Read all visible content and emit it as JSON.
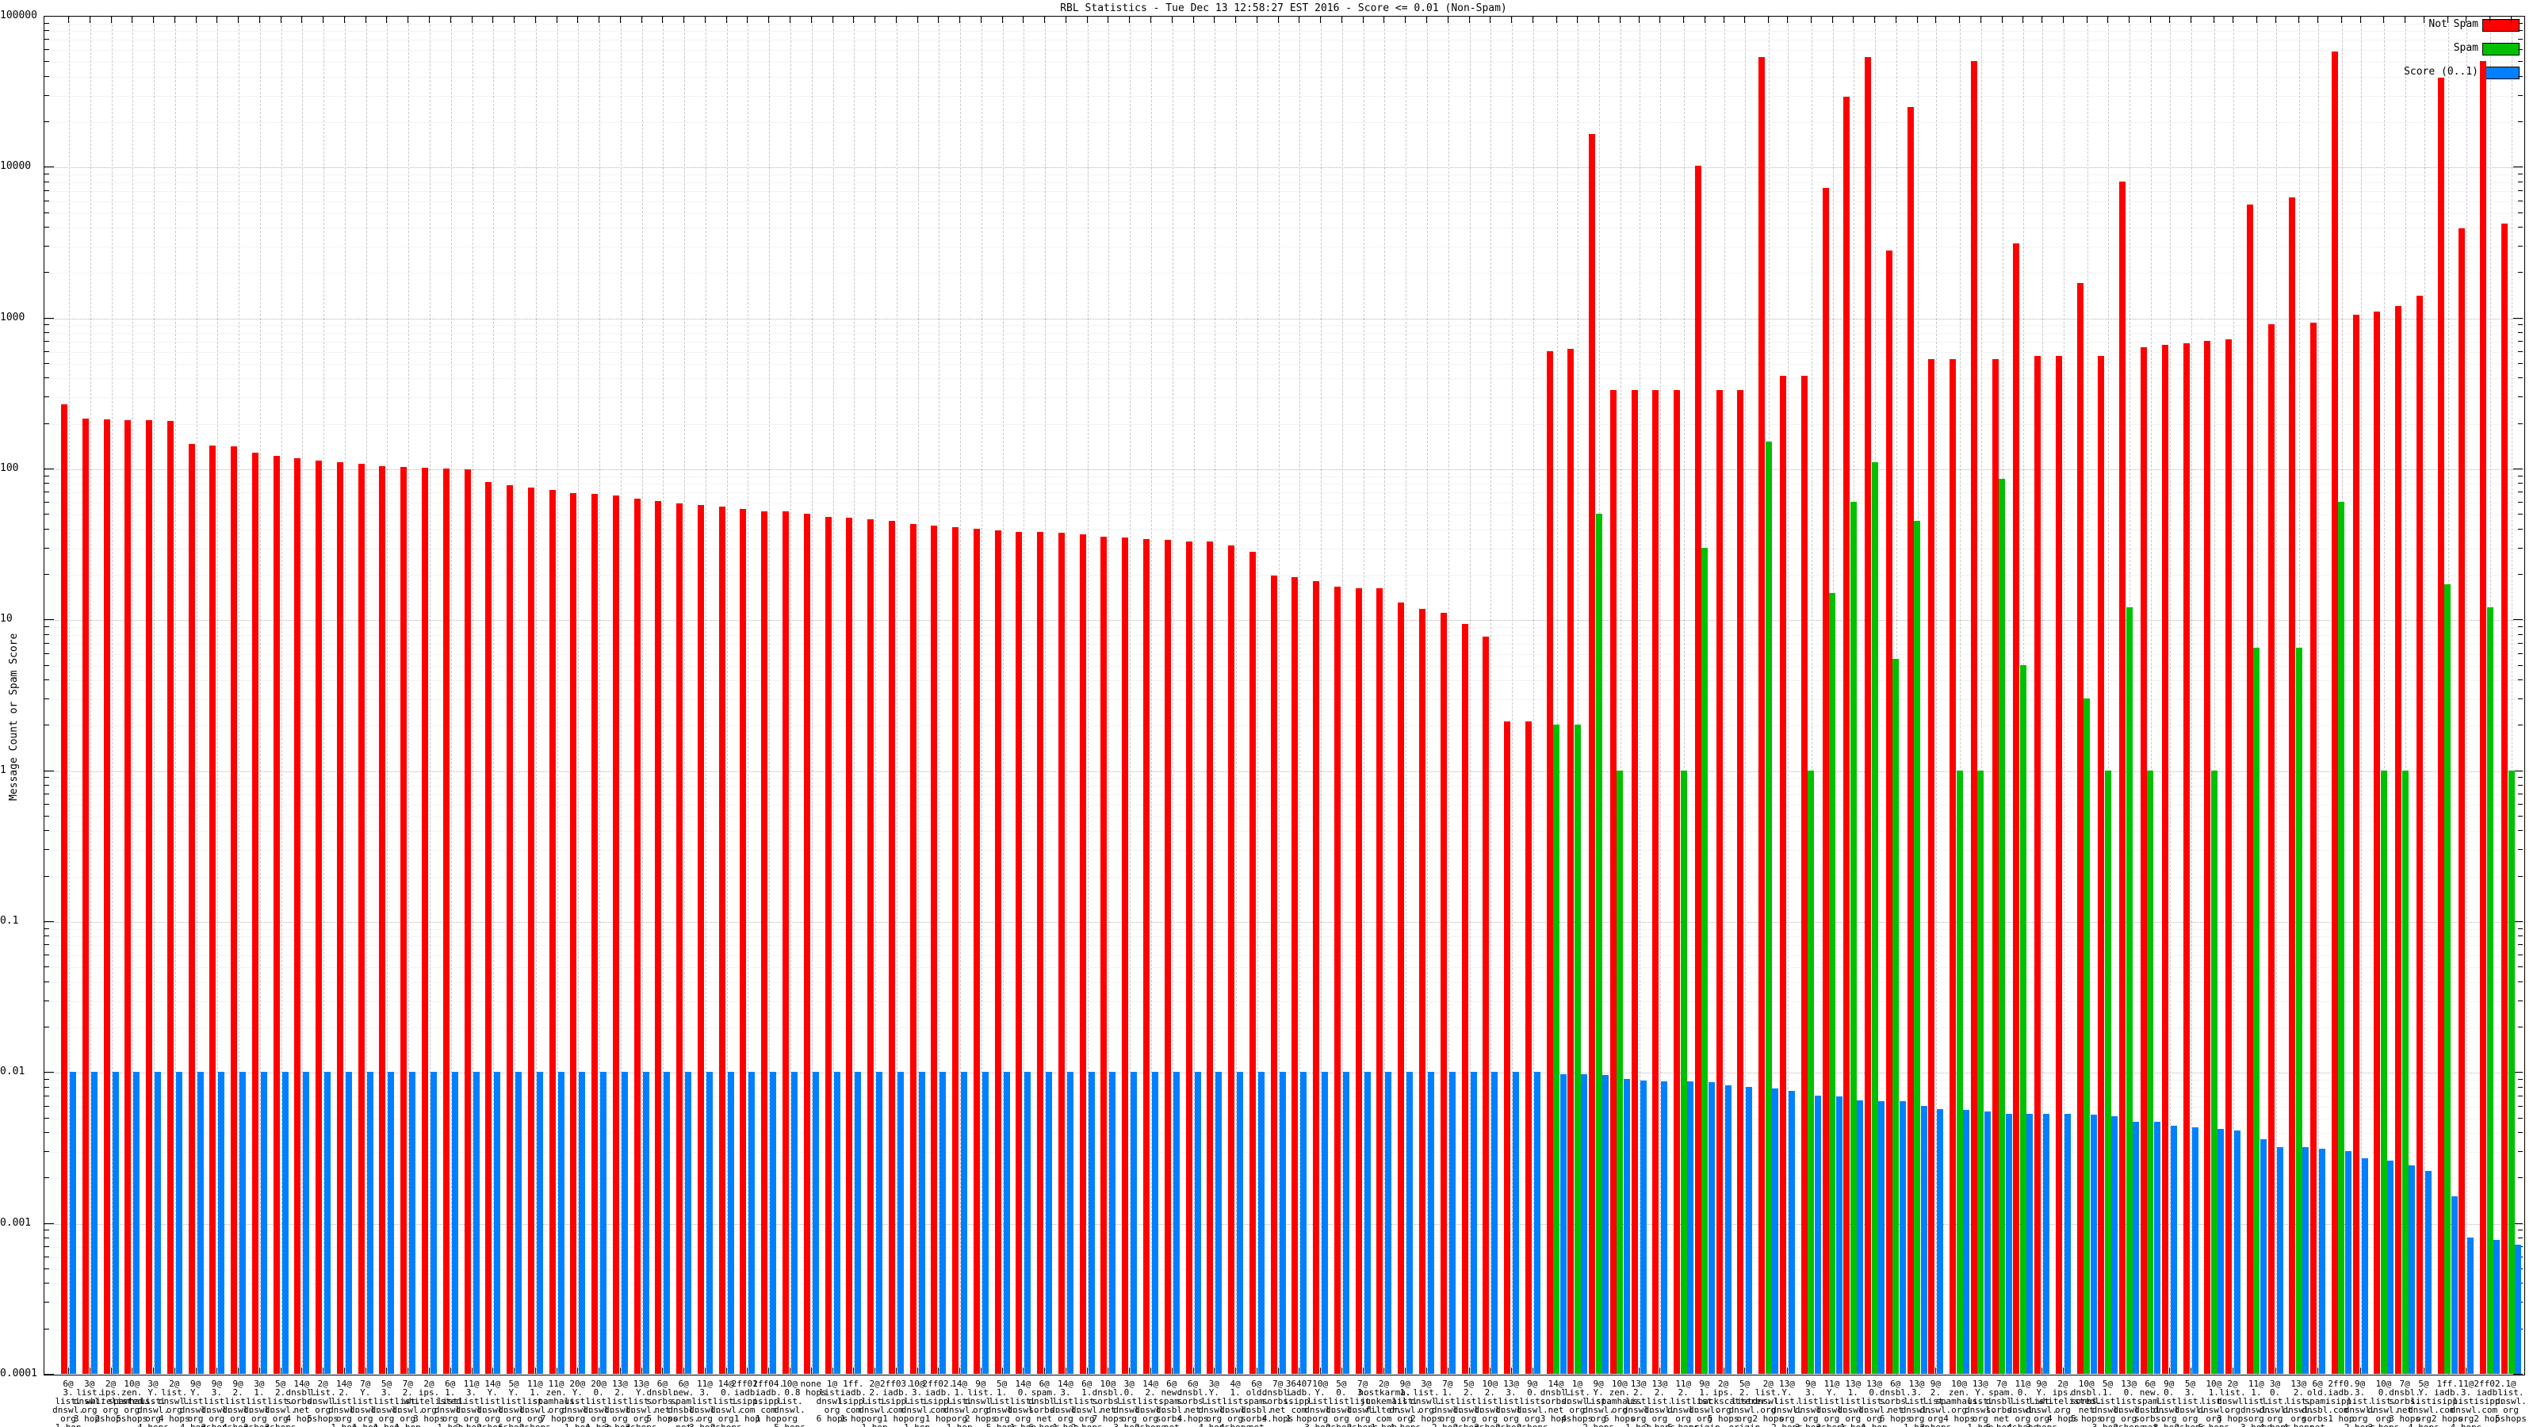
{
  "title": "RBL Statistics - Tue Dec 13 12:58:27 EST 2016 - Score <= 0.01 (Non-Spam)",
  "y_axis": {
    "label": "Message Count or Spam Score",
    "ticks": [
      "100000",
      "10000",
      "1000",
      "100",
      "10",
      "1",
      "0.1",
      "0.01",
      "0.001",
      "0.0001"
    ]
  },
  "legend": [
    {
      "label": "Not Spam",
      "color": "#ff0000"
    },
    {
      "label": "Spam",
      "color": "#00c000"
    },
    {
      "label": "Score (0..1)",
      "color": "#0080ff"
    }
  ],
  "chart_data": {
    "type": "bar",
    "y_scale": "log",
    "ylim": [
      0.0001,
      100000
    ],
    "grid": true,
    "legend_position": "top-right",
    "series_names": [
      "Not Spam",
      "Spam",
      "Score (0..1)"
    ],
    "groups": [
      {
        "label": "6@/3./list./dnswl./org/1 hop",
        "not_spam": 265,
        "spam": null,
        "score": 0.01
      },
      {
        "label": "3@/list./dnswl./org/3 hops",
        "not_spam": 215,
        "spam": null,
        "score": 0.01
      },
      {
        "label": "2@/ips./whitelisted./org/2 hops",
        "not_spam": 212,
        "spam": null,
        "score": 0.01
      },
      {
        "label": "10@/zen./spamhaus./org/5 hops",
        "not_spam": 210,
        "spam": null,
        "score": 0.01
      },
      {
        "label": "3@/Y./list./dnswl./org/4 hops",
        "not_spam": 208,
        "spam": null,
        "score": 0.01
      },
      {
        "label": "2@/list./dnswl./org/4 hops",
        "not_spam": 206,
        "spam": null,
        "score": 0.01
      },
      {
        "label": "9@/Y./list./dnswl./org/4 hops",
        "not_spam": 145,
        "spam": null,
        "score": 0.01
      },
      {
        "label": "9@/3./list./dnswl./org/3 hops",
        "not_spam": 142,
        "spam": null,
        "score": 0.01
      },
      {
        "label": "9@/2./list./dnswl./org/4 hops",
        "not_spam": 140,
        "spam": null,
        "score": 0.01
      },
      {
        "label": "3@/1./list./dnswl./org/3 hops",
        "not_spam": 128,
        "spam": null,
        "score": 0.01
      },
      {
        "label": "5@/2./list./dnswl./org/3 hops",
        "not_spam": 122,
        "spam": null,
        "score": 0.01
      },
      {
        "label": "14@/dnsbl./sorbs./net/4 hops",
        "not_spam": 117,
        "spam": null,
        "score": 0.01
      },
      {
        "label": "2@/list./dnswl./org/5 hops",
        "not_spam": 113,
        "spam": null,
        "score": 0.01
      },
      {
        "label": "14@/2./list./dnswl./org/1 hop",
        "not_spam": 110,
        "spam": null,
        "score": 0.01
      },
      {
        "label": "7@/Y./list./dnswl./org/1 hop",
        "not_spam": 107,
        "spam": null,
        "score": 0.01
      },
      {
        "label": "5@/3./list./dnswl./org/1 hop",
        "not_spam": 104,
        "spam": null,
        "score": 0.01
      },
      {
        "label": "7@/2./list./dnswl./org/1 hop",
        "not_spam": 102,
        "spam": null,
        "score": 0.01
      },
      {
        "label": "2@/ips./whitelisted./org/3 hops",
        "not_spam": 101,
        "spam": null,
        "score": 0.01
      },
      {
        "label": "6@/1./list./dnswl./org/1 hop",
        "not_spam": 100,
        "spam": null,
        "score": 0.01
      },
      {
        "label": "11@/3./list./dnswl./org/2 hops",
        "not_spam": 99,
        "spam": null,
        "score": 0.01
      },
      {
        "label": "14@/Y./list./dnswl./org/2 hops",
        "not_spam": 81,
        "spam": null,
        "score": 0.01
      },
      {
        "label": "5@/Y./list./dnswl./org/6 hops",
        "not_spam": 78,
        "spam": null,
        "score": 0.01
      },
      {
        "label": "11@/1./list./dnswl./org/2 hops",
        "not_spam": 75,
        "spam": null,
        "score": 0.01
      },
      {
        "label": "11@/zen./spamhaus./org/7 hops",
        "not_spam": 72,
        "spam": null,
        "score": 0.01
      },
      {
        "label": "20@/Y./list./dnswl./org/1 hop",
        "not_spam": 69,
        "spam": null,
        "score": 0.01
      },
      {
        "label": "20@/0./list./dnswl./org/1 hop",
        "not_spam": 68,
        "spam": null,
        "score": 0.01
      },
      {
        "label": "13@/2./list./dnswl./org/3 hops",
        "not_spam": 66,
        "spam": null,
        "score": 0.01
      },
      {
        "label": "13@/Y./list./dnswl./org/3 hops",
        "not_spam": 63,
        "spam": null,
        "score": 0.01
      },
      {
        "label": "6@/dnsbl./sorbs./net/5 hops",
        "not_spam": 61,
        "spam": null,
        "score": 0.01
      },
      {
        "label": "6@/new./spam./dnsbl./sorbs./net/5 hops",
        "not_spam": 59,
        "spam": null,
        "score": 0.01
      },
      {
        "label": "11@/3./list./dnswl./org/3 hops",
        "not_spam": 57,
        "spam": null,
        "score": 0.01
      },
      {
        "label": "14@/0./list./dnswl./org/2 hops",
        "not_spam": 56,
        "spam": null,
        "score": 0.01
      },
      {
        "label": "2ff01./iadb./isipp./com/1 hop",
        "not_spam": 54,
        "spam": null,
        "score": 0.01
      },
      {
        "label": "2ff04./iadb./isipp./com/1 hop",
        "not_spam": 52,
        "spam": null,
        "score": 0.01
      },
      {
        "label": "10@/0./list./dnswl./org/5 hops",
        "not_spam": 52,
        "spam": null,
        "score": 0.01
      },
      {
        "label": "none/8 hops",
        "not_spam": 50,
        "spam": null,
        "score": 0.01
      },
      {
        "label": "1@/list./dnswl./org/6 hops",
        "not_spam": 48,
        "spam": null,
        "score": 0.01
      },
      {
        "label": "1ff./iadb./isipp./com/1 hop",
        "not_spam": 47,
        "spam": null,
        "score": 0.01
      },
      {
        "label": "2@/2./list./dnswl./org/1 hop",
        "not_spam": 46,
        "spam": null,
        "score": 0.01
      },
      {
        "label": "2ff03./iadb./isipp./com/1 hop",
        "not_spam": 45,
        "spam": null,
        "score": 0.01
      },
      {
        "label": "10@/3./list./dnswl./org/1 hop",
        "not_spam": 43,
        "spam": null,
        "score": 0.01
      },
      {
        "label": "2ff02./iadb./isipp./com/1 hop",
        "not_spam": 42,
        "spam": null,
        "score": 0.01
      },
      {
        "label": "14@/1./list./dnswl./org/1 hop",
        "not_spam": 41,
        "spam": null,
        "score": 0.01
      },
      {
        "label": "9@/list./dnswl./org/2 hops",
        "not_spam": 40,
        "spam": null,
        "score": 0.01
      },
      {
        "label": "5@/1./list./dnswl./org/5 hops",
        "not_spam": 39,
        "spam": null,
        "score": 0.01
      },
      {
        "label": "14@/0./list./dnswl./org/1 hop",
        "not_spam": 38,
        "spam": null,
        "score": 0.01
      },
      {
        "label": "6@/spam./dnsbl./sorbs./net/6 hops",
        "not_spam": 38,
        "spam": null,
        "score": 0.01
      },
      {
        "label": "14@/3./list./dnswl./org/1 hop",
        "not_spam": 37.5,
        "spam": null,
        "score": 0.01
      },
      {
        "label": "6@/1./list./dnswl./org/2 hops",
        "not_spam": 36.5,
        "spam": null,
        "score": 0.01
      },
      {
        "label": "10@/dnsbl./sorbs./net/7 hops",
        "not_spam": 35.5,
        "spam": null,
        "score": 0.01
      },
      {
        "label": "3@/0./list./dnswl./org/3 hops",
        "not_spam": 35,
        "spam": null,
        "score": 0.01
      },
      {
        "label": "14@/2./list./dnswl./org/2 hops",
        "not_spam": 34,
        "spam": null,
        "score": 0.01
      },
      {
        "label": "6@/new./spam./dnsbl./sorbs./net/4 hops",
        "not_spam": 33.5,
        "spam": null,
        "score": 0.01
      },
      {
        "label": "6@/dnsbl./sorbs./net/4 hops",
        "not_spam": 33,
        "spam": null,
        "score": 0.01
      },
      {
        "label": "3@/Y./list./dnswl./org/4 hops",
        "not_spam": 33,
        "spam": null,
        "score": 0.01
      },
      {
        "label": "4@/1./list./dnswl./org/4 hops",
        "not_spam": 31,
        "spam": null,
        "score": 0.01
      },
      {
        "label": "6@/old./spam./dnsbl./sorbs./net/6 hops",
        "not_spam": 28,
        "spam": null,
        "score": 0.01
      },
      {
        "label": "7@/dnsbl./sorbs./net/4 hops",
        "not_spam": 19.5,
        "spam": null,
        "score": 0.01
      },
      {
        "label": "36407/iadb./isipp./com/1 hop",
        "not_spam": 19,
        "spam": null,
        "score": 0.01
      },
      {
        "label": "10@/Y./list./dnswl./org/3 hops",
        "not_spam": 18,
        "spam": null,
        "score": 0.01
      },
      {
        "label": "5@/0./list./dnswl./org/2 hops",
        "not_spam": 16.5,
        "spam": null,
        "score": 0.01
      },
      {
        "label": "7@/3./list./dnswl./org/2 hops",
        "not_spam": 16,
        "spam": null,
        "score": 0.01
      },
      {
        "label": "2@/hostkarma./junkemail/filter./com/1 hop",
        "not_spam": 16,
        "spam": null,
        "score": 0.01
      },
      {
        "label": "9@/1./list./dnswl./org/4 hops",
        "not_spam": 13,
        "spam": null,
        "score": 0.01
      },
      {
        "label": "3@/list./dnswl./org/2 hops",
        "not_spam": 11.7,
        "spam": null,
        "score": 0.01
      },
      {
        "label": "7@/1./list./dnswl./org/2 hops",
        "not_spam": 11,
        "spam": null,
        "score": 0.01
      },
      {
        "label": "5@/2./list./dnswl./org/2 hops",
        "not_spam": 9.3,
        "spam": null,
        "score": 0.01
      },
      {
        "label": "10@/2./list./dnswl./org/3 hops",
        "not_spam": 7.7,
        "spam": null,
        "score": 0.01
      },
      {
        "label": "13@/3./list./dnswl./org/2 hops",
        "not_spam": 2.1,
        "spam": null,
        "score": 0.01
      },
      {
        "label": "9@/0./list./dnswl./org/2 hops",
        "not_spam": 2.1,
        "spam": null,
        "score": 0.01
      },
      {
        "label": "14@/dnsbl./sorbs./net/3 hops",
        "not_spam": 600,
        "spam": 2,
        "score": 0.0097
      },
      {
        "label": "1@/list./dnswl./org/4 hops",
        "not_spam": 620,
        "spam": 2,
        "score": 0.0097
      },
      {
        "label": "9@/Y./list./dnswl./org/2 hops",
        "not_spam": 16500,
        "spam": 50,
        "score": 0.0096
      },
      {
        "label": "10@/zen./spamhaus./org/6 hops",
        "not_spam": 330,
        "spam": 1,
        "score": 0.009
      },
      {
        "label": "13@/2./list./dnswl./org/1 hop",
        "not_spam": 330,
        "spam": null,
        "score": 0.0088
      },
      {
        "label": "13@/2./list./dnswl./org/2 hops",
        "not_spam": 330,
        "spam": null,
        "score": 0.0087
      },
      {
        "label": "11@/2./list./dnswl./org/5 hops",
        "not_spam": 330,
        "spam": 1,
        "score": 0.0087
      },
      {
        "label": "9@/1./list./dnswl./org/origin",
        "not_spam": 10200,
        "spam": 30,
        "score": 0.0086
      },
      {
        "label": "2@/ips./backscatterer./org/5 hops",
        "not_spam": 330,
        "spam": null,
        "score": 0.0082
      },
      {
        "label": "5@/2./list./dnswl./org/origin",
        "not_spam": 330,
        "spam": null,
        "score": 0.008
      },
      {
        "label": "2@/list./dnswl./org/2 hops",
        "not_spam": 53000,
        "spam": 150,
        "score": 0.0078
      },
      {
        "label": "13@/Y./list./dnswl./org/2 hops",
        "not_spam": 410,
        "spam": null,
        "score": 0.0075
      },
      {
        "label": "9@/3./list./dnswl./org/3 hops",
        "not_spam": 410,
        "spam": 1,
        "score": 0.007
      },
      {
        "label": "11@/Y./list./dnswl./org/3 hops",
        "not_spam": 7200,
        "spam": 15,
        "score": 0.0069
      },
      {
        "label": "13@/1./list./dnswl./org/1 hop",
        "not_spam": 29000,
        "spam": 60,
        "score": 0.0065
      },
      {
        "label": "13@/0./list./dnswl./org/1 hop",
        "not_spam": 53000,
        "spam": 110,
        "score": 0.0064
      },
      {
        "label": "6@/dnsbl./sorbs./net/6 hops",
        "not_spam": 2800,
        "spam": 5.5,
        "score": 0.0064
      },
      {
        "label": "13@/3./list./dnswl./org/1 hop",
        "not_spam": 25000,
        "spam": 45,
        "score": 0.006
      },
      {
        "label": "9@/2./list./dnswl./org/3 hops",
        "not_spam": 530,
        "spam": null,
        "score": 0.0057
      },
      {
        "label": "10@/zen./spamhaus./org/4 hops",
        "not_spam": 530,
        "spam": 1,
        "score": 0.0056
      },
      {
        "label": "13@/Y./list./dnswl./org/1 hop",
        "not_spam": 50000,
        "spam": 1,
        "score": 0.0055
      },
      {
        "label": "7@/spam./dnsbl./sorbs./net/5 hops",
        "not_spam": 530,
        "spam": 85,
        "score": 0.0053
      },
      {
        "label": "11@/0./list./dnswl./org/4 hops",
        "not_spam": 3100,
        "spam": 5,
        "score": 0.0053
      },
      {
        "label": "9@/Y./list./dnswl./org/3 hops",
        "not_spam": 560,
        "spam": null,
        "score": 0.0053
      },
      {
        "label": "2@/ips./whitelisted./org/4 hops",
        "not_spam": 560,
        "spam": null,
        "score": 0.0053
      },
      {
        "label": "10@/dnsbl./sorbs./net/5 hops",
        "not_spam": 1700,
        "spam": 3,
        "score": 0.0052
      },
      {
        "label": "5@/1./list./dnswl./org/3 hops",
        "not_spam": 560,
        "spam": 1,
        "score": 0.0051
      },
      {
        "label": "13@/0./list./dnswl./org/2 hops",
        "not_spam": 8000,
        "spam": 12,
        "score": 0.0047
      },
      {
        "label": "6@/new./spam./dnsbl./sorbs./net/6 hops",
        "not_spam": 640,
        "spam": 1,
        "score": 0.0047
      },
      {
        "label": "9@/0./list./dnswl./org/3 hops",
        "not_spam": 660,
        "spam": null,
        "score": 0.0044
      },
      {
        "label": "5@/3./list./dnswl./org/2 hops",
        "not_spam": 680,
        "spam": null,
        "score": 0.0043
      },
      {
        "label": "10@/1./list./dnswl./org/5 hops",
        "not_spam": 700,
        "spam": 1,
        "score": 0.0042
      },
      {
        "label": "2@/list./dnswl./org/3 hops",
        "not_spam": 720,
        "spam": null,
        "score": 0.0041
      },
      {
        "label": "11@/1./list./dnswl./org/3 hops",
        "not_spam": 5600,
        "spam": 6.5,
        "score": 0.0036
      },
      {
        "label": "3@/0./list./dnswl./org/4 hops",
        "not_spam": 900,
        "spam": null,
        "score": 0.0032
      },
      {
        "label": "13@/2./list./dnswl./org/4 hops",
        "not_spam": 6300,
        "spam": 6.5,
        "score": 0.0032
      },
      {
        "label": "6@/old./spam./dnsbl./sorbs./net/5 hops",
        "not_spam": 930,
        "spam": null,
        "score": 0.0031
      },
      {
        "label": "2ff0./iadb./isipp./com/1 hop",
        "not_spam": 58000,
        "spam": 60,
        "score": 0.003
      },
      {
        "label": "9@/3./list./dnswl./org/2 hops",
        "not_spam": 1050,
        "spam": null,
        "score": 0.0027
      },
      {
        "label": "10@/0./list./dnswl./org/3 hops",
        "not_spam": 1100,
        "spam": 1,
        "score": 0.0026
      },
      {
        "label": "7@/dnsbl./sorbs./net/3 hops",
        "not_spam": 1200,
        "spam": 1,
        "score": 0.0024
      },
      {
        "label": "5@/Y./list./dnswl./org/4 hops",
        "not_spam": 1400,
        "spam": null,
        "score": 0.0022
      },
      {
        "label": "1ff./iadb./isipp./com/2 hops",
        "not_spam": 39000,
        "spam": 17,
        "score": 0.0015
      },
      {
        "label": "11@/3./list./dnswl./org/4 hops",
        "not_spam": 3900,
        "spam": null,
        "score": 0.0008
      },
      {
        "label": "2ff02./iadb./isipp./com/2 hops",
        "not_spam": 50000,
        "spam": 12,
        "score": 0.00077
      },
      {
        "label": "1@/list./dnswl./org/5 hops",
        "not_spam": 4200,
        "spam": 1,
        "score": 0.00072
      }
    ]
  }
}
